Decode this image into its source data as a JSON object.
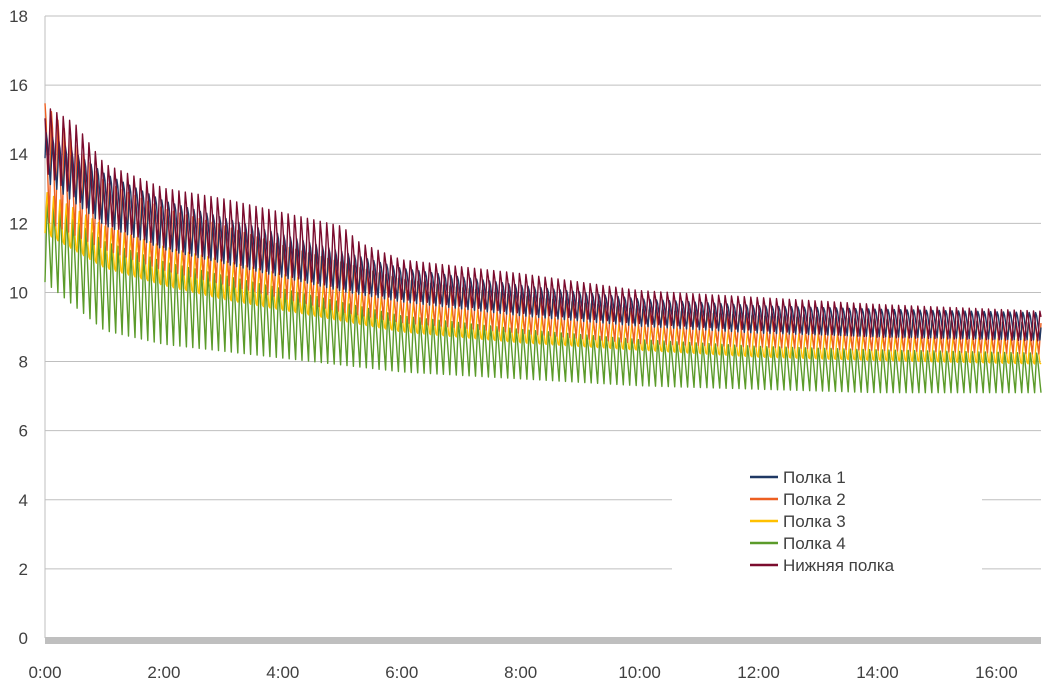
{
  "chart_data": {
    "type": "line",
    "title": "",
    "xlabel": "",
    "ylabel": "",
    "ylim": [
      0,
      18
    ],
    "xlim_hours": [
      0,
      16.75
    ],
    "y_ticks": [
      "0",
      "2",
      "4",
      "6",
      "8",
      "10",
      "12",
      "14",
      "16",
      "18"
    ],
    "x_ticks": [
      "0:00",
      "2:00",
      "4:00",
      "6:00",
      "8:00",
      "10:00",
      "12:00",
      "14:00",
      "16:00"
    ],
    "grid": true,
    "legend_position": "lower-right",
    "oscillation_cycles": 155,
    "series": [
      {
        "name": "Полка 1",
        "color": "#1f3864",
        "peak_envelope": [
          [
            0,
            14.8
          ],
          [
            1,
            13.6
          ],
          [
            2,
            12.8
          ],
          [
            3,
            12.3
          ],
          [
            4,
            11.8
          ],
          [
            5,
            11.3
          ],
          [
            6,
            10.8
          ],
          [
            8,
            10.3
          ],
          [
            10,
            9.9
          ],
          [
            12,
            9.7
          ],
          [
            14,
            9.6
          ],
          [
            16.75,
            9.5
          ]
        ],
        "trough_envelope": [
          [
            0,
            13.2
          ],
          [
            1,
            11.9
          ],
          [
            2,
            11.2
          ],
          [
            3,
            10.8
          ],
          [
            4,
            10.4
          ],
          [
            5,
            10.0
          ],
          [
            6,
            9.7
          ],
          [
            8,
            9.3
          ],
          [
            10,
            9.0
          ],
          [
            12,
            8.8
          ],
          [
            14,
            8.7
          ],
          [
            16.75,
            8.6
          ]
        ]
      },
      {
        "name": "Полка 2",
        "color": "#ed5f21",
        "peak_envelope": [
          [
            0,
            15.8
          ],
          [
            1,
            13.4
          ],
          [
            2,
            12.6
          ],
          [
            3,
            12.1
          ],
          [
            4,
            11.5
          ],
          [
            5,
            11.0
          ],
          [
            6,
            10.5
          ],
          [
            8,
            10.0
          ],
          [
            10,
            9.6
          ],
          [
            12,
            9.4
          ],
          [
            14,
            9.3
          ],
          [
            16.75,
            9.2
          ]
        ],
        "trough_envelope": [
          [
            0,
            12.0
          ],
          [
            1,
            11.2
          ],
          [
            2,
            10.6
          ],
          [
            3,
            10.2
          ],
          [
            4,
            9.8
          ],
          [
            5,
            9.4
          ],
          [
            6,
            9.1
          ],
          [
            8,
            8.8
          ],
          [
            10,
            8.5
          ],
          [
            12,
            8.4
          ],
          [
            14,
            8.3
          ],
          [
            16.75,
            8.2
          ]
        ]
      },
      {
        "name": "Полка 3",
        "color": "#ffc000",
        "peak_envelope": [
          [
            0,
            13.0
          ],
          [
            1,
            12.0
          ],
          [
            2,
            11.4
          ],
          [
            3,
            11.0
          ],
          [
            4,
            10.6
          ],
          [
            5,
            10.2
          ],
          [
            6,
            9.8
          ],
          [
            8,
            9.4
          ],
          [
            10,
            9.1
          ],
          [
            12,
            8.9
          ],
          [
            14,
            8.8
          ],
          [
            16.75,
            8.7
          ]
        ],
        "trough_envelope": [
          [
            0,
            11.5
          ],
          [
            1,
            10.5
          ],
          [
            2,
            10.0
          ],
          [
            3,
            9.6
          ],
          [
            4,
            9.3
          ],
          [
            5,
            9.0
          ],
          [
            6,
            8.7
          ],
          [
            8,
            8.4
          ],
          [
            10,
            8.2
          ],
          [
            12,
            8.0
          ],
          [
            14,
            7.9
          ],
          [
            16.75,
            7.8
          ]
        ]
      },
      {
        "name": "Полка 4",
        "color": "#5b9b2a",
        "peak_envelope": [
          [
            0,
            12.8
          ],
          [
            1,
            11.6
          ],
          [
            2,
            11.0
          ],
          [
            3,
            10.6
          ],
          [
            4,
            10.2
          ],
          [
            5,
            9.8
          ],
          [
            6,
            9.4
          ],
          [
            8,
            9.0
          ],
          [
            10,
            8.7
          ],
          [
            12,
            8.5
          ],
          [
            14,
            8.4
          ],
          [
            16.75,
            8.3
          ]
        ],
        "trough_envelope": [
          [
            0,
            10.3
          ],
          [
            1,
            8.9
          ],
          [
            2,
            8.5
          ],
          [
            3,
            8.3
          ],
          [
            4,
            8.1
          ],
          [
            5,
            7.9
          ],
          [
            6,
            7.7
          ],
          [
            8,
            7.5
          ],
          [
            10,
            7.3
          ],
          [
            12,
            7.2
          ],
          [
            14,
            7.1
          ],
          [
            16.75,
            7.1
          ]
        ]
      },
      {
        "name": "Нижняя полка",
        "color": "#7b0c2e",
        "peak_envelope": [
          [
            0,
            15.5
          ],
          [
            0.5,
            15.0
          ],
          [
            1,
            13.8
          ],
          [
            2,
            13.1
          ],
          [
            3,
            12.8
          ],
          [
            4,
            12.4
          ],
          [
            5,
            12.0
          ],
          [
            5.3,
            11.5
          ],
          [
            6,
            11.0
          ],
          [
            8,
            10.6
          ],
          [
            10,
            10.1
          ],
          [
            12,
            9.9
          ],
          [
            14,
            9.7
          ],
          [
            16.75,
            9.5
          ]
        ],
        "trough_envelope": [
          [
            0,
            13.5
          ],
          [
            1,
            12.0
          ],
          [
            2,
            11.3
          ],
          [
            3,
            10.9
          ],
          [
            4,
            10.5
          ],
          [
            5,
            10.1
          ],
          [
            6,
            9.8
          ],
          [
            8,
            9.4
          ],
          [
            10,
            9.1
          ],
          [
            12,
            8.9
          ],
          [
            14,
            8.7
          ],
          [
            16.75,
            8.6
          ]
        ]
      }
    ]
  }
}
